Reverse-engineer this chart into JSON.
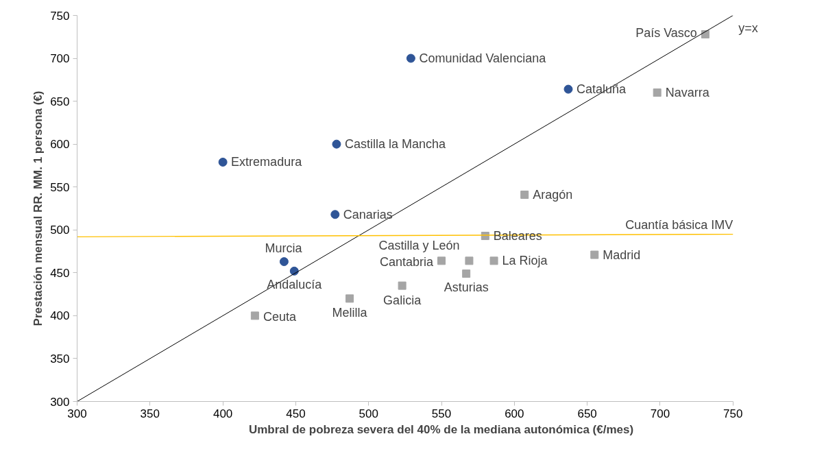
{
  "chart_data": {
    "type": "scatter",
    "xlabel": "Umbral de pobreza severa del 40% de la mediana autonómica (€/mes)",
    "ylabel": "Prestación mensual RR. MM. 1 persona (€)",
    "xlim": [
      300,
      750
    ],
    "ylim": [
      300,
      750
    ],
    "xticks": [
      300,
      350,
      400,
      450,
      500,
      550,
      600,
      650,
      700,
      750
    ],
    "yticks": [
      300,
      350,
      400,
      450,
      500,
      550,
      600,
      650,
      700,
      750
    ],
    "grid": false,
    "series": [
      {
        "marker": "circle",
        "color": "#2f5597",
        "x": [
          529,
          637,
          478,
          400,
          477,
          442,
          449
        ],
        "values": [
          700,
          664,
          600,
          579,
          518,
          463,
          452
        ]
      },
      {
        "marker": "square",
        "color": "#a5a5a5",
        "x": [
          731,
          698,
          607,
          580,
          655,
          586,
          569,
          550,
          567,
          523,
          487,
          422
        ],
        "values": [
          728,
          660,
          541,
          493,
          471,
          464,
          464,
          464,
          449,
          435,
          420,
          400
        ]
      },
      {
        "type": "line",
        "name": "y=x",
        "color": "#000000",
        "x": [
          300,
          750
        ],
        "values": [
          300,
          750
        ]
      },
      {
        "type": "line",
        "name": "Cuantía básica IMV",
        "color": "#ffc000",
        "x": [
          300,
          750
        ],
        "values": [
          492,
          495
        ]
      }
    ],
    "annotations": [
      {
        "text": "Comunidad Valenciana",
        "x": 529,
        "y": 700
      },
      {
        "text": "Cataluña",
        "x": 637,
        "y": 664
      },
      {
        "text": "Castilla la Mancha",
        "x": 478,
        "y": 600
      },
      {
        "text": "Extremadura",
        "x": 400,
        "y": 579
      },
      {
        "text": "Canarias",
        "x": 477,
        "y": 518
      },
      {
        "text": "Murcia",
        "x": 442,
        "y": 463
      },
      {
        "text": "Andalucía",
        "x": 449,
        "y": 452
      },
      {
        "text": "País Vasco",
        "x": 731,
        "y": 728
      },
      {
        "text": "Navarra",
        "x": 698,
        "y": 660
      },
      {
        "text": "Aragón",
        "x": 607,
        "y": 541
      },
      {
        "text": "Baleares",
        "x": 580,
        "y": 493
      },
      {
        "text": "Madrid",
        "x": 655,
        "y": 471
      },
      {
        "text": "La Rioja",
        "x": 586,
        "y": 464
      },
      {
        "text": "Castilla y León",
        "x": 569,
        "y": 464
      },
      {
        "text": "Cantabria",
        "x": 550,
        "y": 464
      },
      {
        "text": "Asturias",
        "x": 567,
        "y": 449
      },
      {
        "text": "Galicia",
        "x": 523,
        "y": 435
      },
      {
        "text": "Melilla",
        "x": 487,
        "y": 420
      },
      {
        "text": "Ceuta",
        "x": 422,
        "y": 400
      }
    ]
  }
}
